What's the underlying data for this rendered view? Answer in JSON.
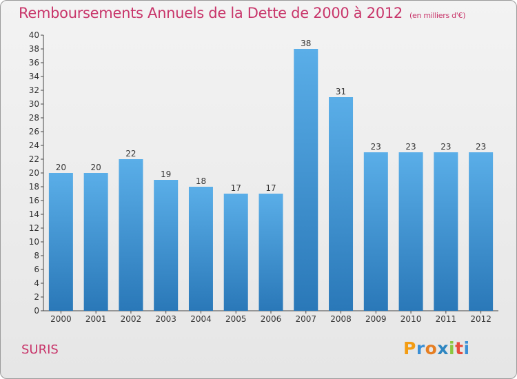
{
  "title": "Remboursements Annuels de la Dette de 2000 à 2012",
  "subtitle": "(en milliers d'€)",
  "commune": "SURIS",
  "logo": {
    "letters": [
      "P",
      "r",
      "o",
      "x",
      "i",
      "t",
      "i"
    ],
    "colors": [
      "#f39c12",
      "#3a8fd6",
      "#e67e22",
      "#2e86c1",
      "#8cc63f",
      "#e74c3c",
      "#3a8fd6"
    ]
  },
  "chart_data": {
    "type": "bar",
    "categories": [
      "2000",
      "2001",
      "2002",
      "2003",
      "2004",
      "2005",
      "2006",
      "2007",
      "2008",
      "2009",
      "2010",
      "2011",
      "2012"
    ],
    "values": [
      20,
      20,
      22,
      19,
      18,
      17,
      17,
      38,
      31,
      23,
      23,
      23,
      23
    ],
    "ylim": [
      0,
      40
    ],
    "ytick_step": 2,
    "grid": false,
    "bar_color_top": "#5aaee8",
    "bar_color_bottom": "#2a78b8"
  }
}
